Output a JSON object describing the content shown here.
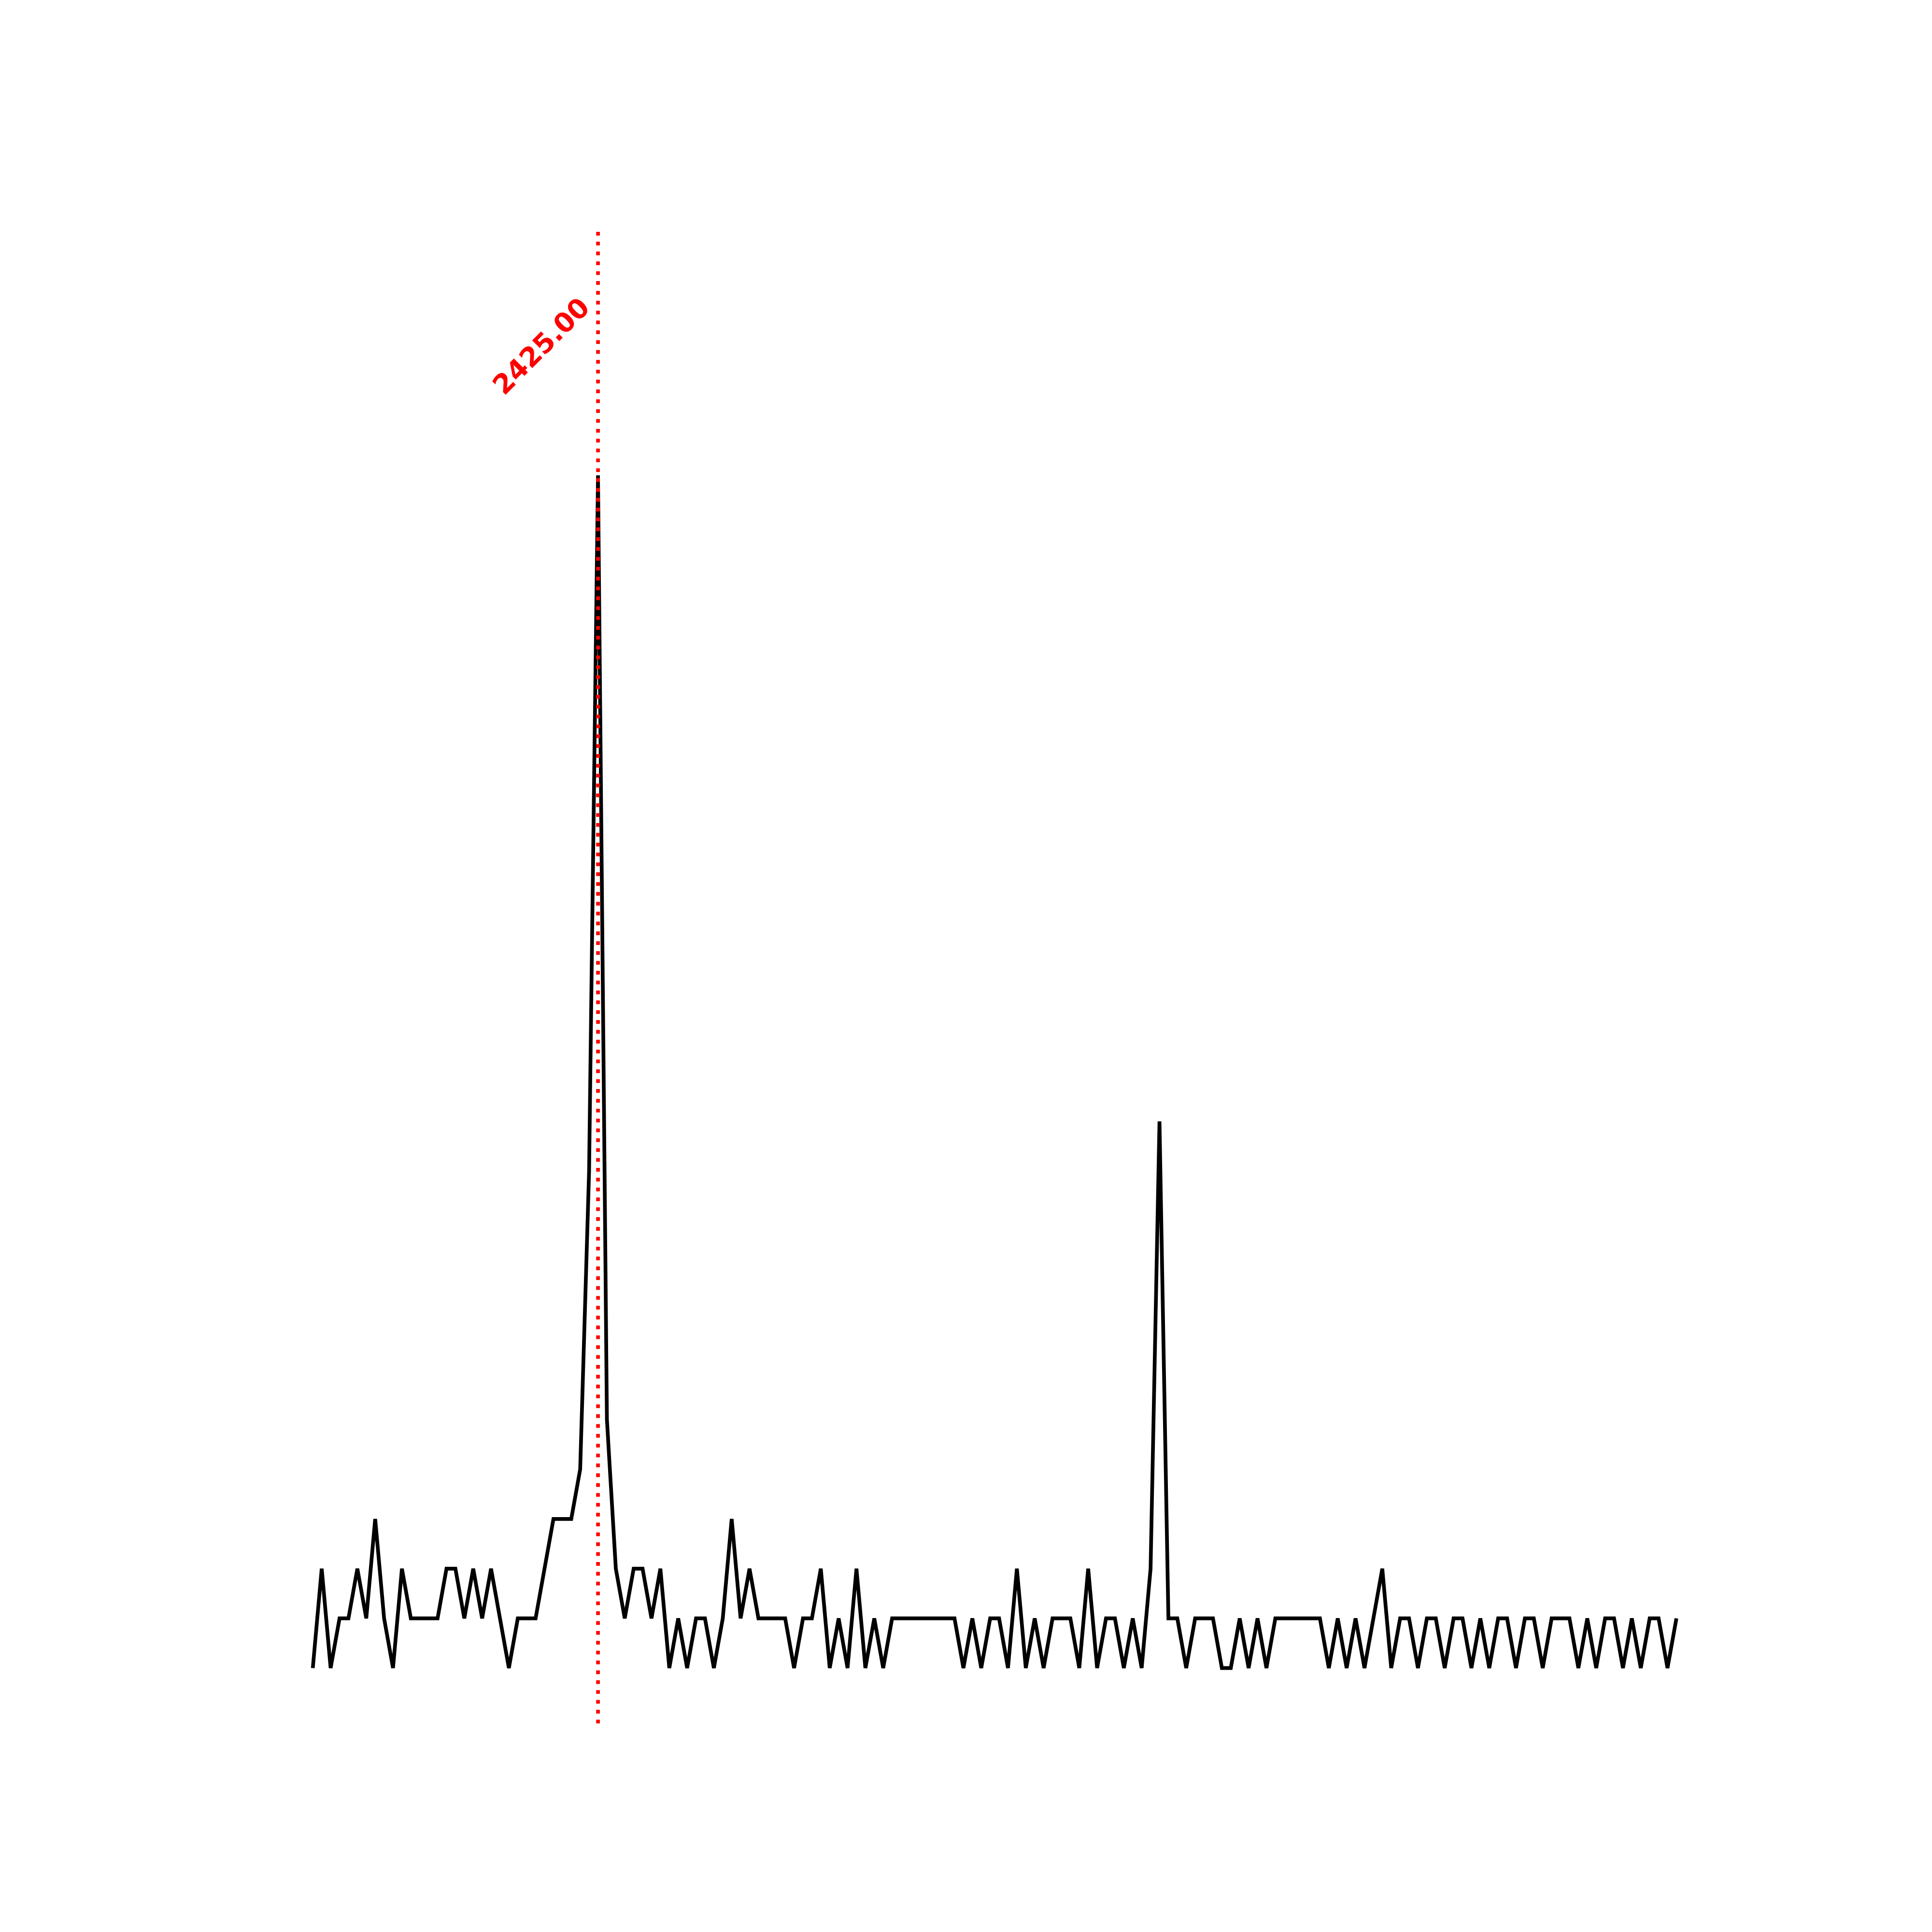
{
  "chart_data": {
    "type": "line",
    "x": [
      2361,
      2363,
      2365,
      2367,
      2369,
      2371,
      2373,
      2375,
      2377,
      2379,
      2381,
      2383,
      2385,
      2387,
      2389,
      2391,
      2393,
      2395,
      2397,
      2399,
      2401,
      2403,
      2405,
      2407,
      2409,
      2411,
      2413,
      2415,
      2417,
      2419,
      2421,
      2423,
      2425,
      2427,
      2429,
      2431,
      2433,
      2435,
      2437,
      2439,
      2441,
      2443,
      2445,
      2447,
      2449,
      2451,
      2453,
      2455,
      2457,
      2459,
      2461,
      2463,
      2465,
      2467,
      2469,
      2471,
      2473,
      2475,
      2477,
      2479,
      2481,
      2483,
      2485,
      2487,
      2489,
      2491,
      2493,
      2495,
      2497,
      2499,
      2501,
      2503,
      2505,
      2507,
      2509,
      2511,
      2513,
      2515,
      2517,
      2519,
      2521,
      2523,
      2525,
      2527,
      2529,
      2531,
      2533,
      2535,
      2537,
      2539,
      2541,
      2543,
      2545,
      2547,
      2549,
      2551,
      2553,
      2555,
      2557,
      2559,
      2561,
      2563,
      2565,
      2567,
      2569,
      2571,
      2573,
      2575,
      2577,
      2579,
      2581,
      2583,
      2585,
      2587,
      2589,
      2591,
      2593,
      2595,
      2597,
      2599,
      2601,
      2603,
      2605,
      2607,
      2609,
      2611,
      2613,
      2615,
      2617,
      2619,
      2621,
      2623,
      2625,
      2627,
      2629,
      2631,
      2633,
      2635,
      2637,
      2639,
      2641,
      2643,
      2645,
      2647,
      2649,
      2651,
      2653,
      2655,
      2657,
      2659,
      2661,
      2663,
      2665,
      2667
    ],
    "series": [
      {
        "color": "#000000",
        "values": [
          0,
          2,
          0,
          1,
          1,
          2,
          1,
          3,
          1,
          0,
          2,
          1,
          1,
          1,
          1,
          2,
          2,
          1,
          2,
          1,
          2,
          1,
          0,
          1,
          1,
          1,
          2,
          3,
          3,
          3,
          4,
          10,
          24,
          5,
          2,
          1,
          2,
          2,
          1,
          2,
          0,
          1,
          0,
          1,
          1,
          0,
          1,
          3,
          1,
          2,
          1,
          1,
          1,
          1,
          0,
          1,
          1,
          2,
          0,
          1,
          0,
          2,
          0,
          1,
          0,
          1,
          1,
          1,
          1,
          1,
          1,
          1,
          1,
          0,
          1,
          0,
          1,
          1,
          0,
          2,
          0,
          1,
          0,
          1,
          1,
          1,
          0,
          2,
          0,
          1,
          1,
          0,
          1,
          0,
          2,
          11,
          1,
          1,
          0,
          1,
          1,
          1,
          0,
          0,
          1,
          0,
          1,
          0,
          1,
          1,
          1,
          1,
          1,
          1,
          0,
          1,
          0,
          1,
          0,
          1,
          2,
          0,
          1,
          1,
          0,
          1,
          1,
          0,
          1,
          1,
          0,
          1,
          0,
          1,
          1,
          0,
          1,
          1,
          0,
          1,
          1,
          1,
          0,
          1,
          0,
          1,
          1,
          0,
          1,
          0,
          1,
          1,
          0,
          1
        ]
      }
    ],
    "xlim": [
      2345,
      2681
    ],
    "ylim": [
      -1.2,
      28.9
    ],
    "vline": {
      "value": 2425,
      "label": "2425.00",
      "color": "#ff0000"
    }
  }
}
